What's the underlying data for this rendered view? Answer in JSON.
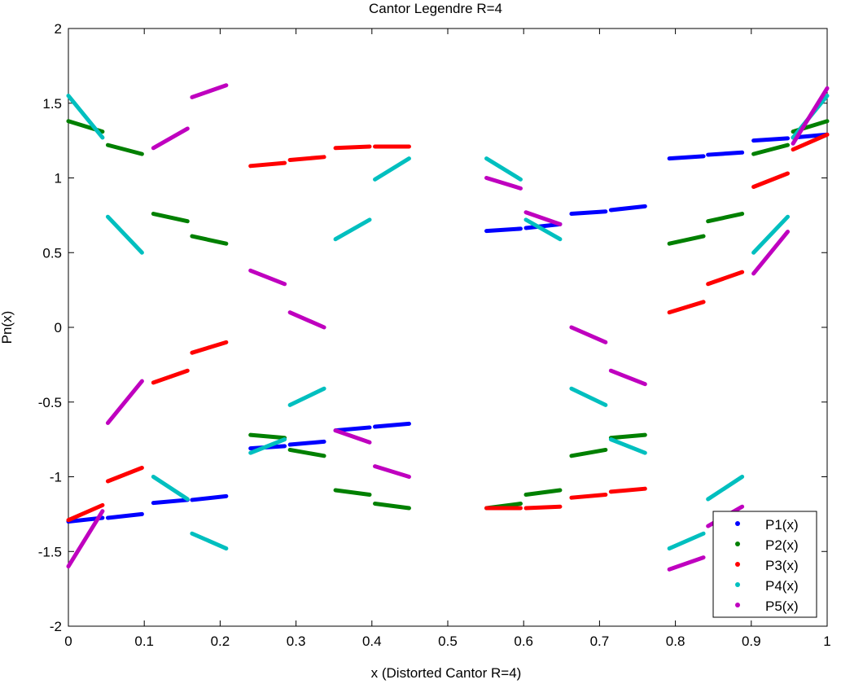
{
  "chart_data": {
    "type": "scatter",
    "title": "Cantor Legendre R=4",
    "xlabel": "x (Distorted Cantor R=4)",
    "ylabel": "Pn(x)",
    "xlim": [
      0,
      1
    ],
    "ylim": [
      -2,
      2
    ],
    "xticks": [
      0,
      0.1,
      0.2,
      0.3,
      0.4,
      0.5,
      0.6,
      0.7,
      0.8,
      0.9,
      1
    ],
    "xtick_labels": [
      "0",
      "0.1",
      "0.2",
      "0.3",
      "0.4",
      "0.5",
      "0.6",
      "0.7",
      "0.8",
      "0.9",
      "1"
    ],
    "yticks": [
      2,
      1.5,
      1,
      0.5,
      0,
      -0.5,
      -1,
      -1.5,
      -2
    ],
    "ytick_labels": [
      "2",
      "1.5",
      "1",
      "0.5",
      "0",
      "-0.5",
      "-1",
      "-1.5",
      "-2"
    ],
    "grid": false,
    "legend_position": "bottom-right",
    "segments_x": [
      [
        0.0,
        0.045
      ],
      [
        0.052,
        0.097
      ],
      [
        0.112,
        0.157
      ],
      [
        0.163,
        0.208
      ],
      [
        0.24,
        0.285
      ],
      [
        0.292,
        0.337
      ],
      [
        0.352,
        0.397
      ],
      [
        0.404,
        0.449
      ],
      [
        0.551,
        0.596
      ],
      [
        0.603,
        0.648
      ],
      [
        0.663,
        0.708
      ],
      [
        0.715,
        0.76
      ],
      [
        0.792,
        0.837
      ],
      [
        0.843,
        0.888
      ],
      [
        0.903,
        0.948
      ],
      [
        0.955,
        1.0
      ]
    ],
    "series": [
      {
        "name": "P1(x)",
        "color": "#0000ff",
        "y": [
          [
            -1.3,
            -1.275
          ],
          [
            -1.275,
            -1.25
          ],
          [
            -1.175,
            -1.155
          ],
          [
            -1.155,
            -1.13
          ],
          [
            -0.81,
            -0.795
          ],
          [
            -0.785,
            -0.765
          ],
          [
            -0.69,
            -0.67
          ],
          [
            -0.665,
            -0.645
          ],
          [
            0.645,
            0.66
          ],
          [
            0.665,
            0.69
          ],
          [
            0.76,
            0.775
          ],
          [
            0.785,
            0.81
          ],
          [
            1.13,
            1.145
          ],
          [
            1.155,
            1.17
          ],
          [
            1.25,
            1.265
          ],
          [
            1.27,
            1.29
          ]
        ]
      },
      {
        "name": "P2(x)",
        "color": "#008000",
        "y": [
          [
            1.38,
            1.31
          ],
          [
            1.22,
            1.16
          ],
          [
            0.76,
            0.71
          ],
          [
            0.61,
            0.56
          ],
          [
            -0.72,
            -0.74
          ],
          [
            -0.82,
            -0.86
          ],
          [
            -1.09,
            -1.12
          ],
          [
            -1.18,
            -1.21
          ],
          [
            -1.21,
            -1.18
          ],
          [
            -1.12,
            -1.09
          ],
          [
            -0.86,
            -0.82
          ],
          [
            -0.74,
            -0.72
          ],
          [
            0.56,
            0.61
          ],
          [
            0.71,
            0.76
          ],
          [
            1.16,
            1.22
          ],
          [
            1.31,
            1.38
          ]
        ]
      },
      {
        "name": "P3(x)",
        "color": "#ff0000",
        "y": [
          [
            -1.29,
            -1.19
          ],
          [
            -1.03,
            -0.94
          ],
          [
            -0.37,
            -0.29
          ],
          [
            -0.17,
            -0.1
          ],
          [
            1.08,
            1.1
          ],
          [
            1.12,
            1.14
          ],
          [
            1.2,
            1.21
          ],
          [
            1.21,
            1.21
          ],
          [
            -1.21,
            -1.21
          ],
          [
            -1.21,
            -1.2
          ],
          [
            -1.14,
            -1.12
          ],
          [
            -1.1,
            -1.08
          ],
          [
            0.1,
            0.17
          ],
          [
            0.29,
            0.37
          ],
          [
            0.94,
            1.03
          ],
          [
            1.19,
            1.29
          ]
        ]
      },
      {
        "name": "P4(x)",
        "color": "#00bfbf",
        "y": [
          [
            1.55,
            1.27
          ],
          [
            0.74,
            0.5
          ],
          [
            -1.0,
            -1.15
          ],
          [
            -1.38,
            -1.48
          ],
          [
            -0.84,
            -0.75
          ],
          [
            -0.52,
            -0.41
          ],
          [
            0.59,
            0.72
          ],
          [
            0.99,
            1.13
          ],
          [
            1.13,
            0.99
          ],
          [
            0.72,
            0.59
          ],
          [
            -0.41,
            -0.52
          ],
          [
            -0.75,
            -0.84
          ],
          [
            -1.48,
            -1.38
          ],
          [
            -1.15,
            -1.0
          ],
          [
            0.5,
            0.74
          ],
          [
            1.27,
            1.55
          ]
        ]
      },
      {
        "name": "P5(x)",
        "color": "#bf00bf",
        "y": [
          [
            -1.6,
            -1.23
          ],
          [
            -0.64,
            -0.36
          ],
          [
            1.2,
            1.33
          ],
          [
            1.54,
            1.62
          ],
          [
            0.38,
            0.29
          ],
          [
            0.1,
            0.0
          ],
          [
            -0.69,
            -0.77
          ],
          [
            -0.93,
            -1.0
          ],
          [
            1.0,
            0.93
          ],
          [
            0.77,
            0.69
          ],
          [
            0.0,
            -0.1
          ],
          [
            -0.29,
            -0.38
          ],
          [
            -1.62,
            -1.54
          ],
          [
            -1.33,
            -1.2
          ],
          [
            0.36,
            0.64
          ],
          [
            1.23,
            1.6
          ]
        ]
      }
    ]
  }
}
